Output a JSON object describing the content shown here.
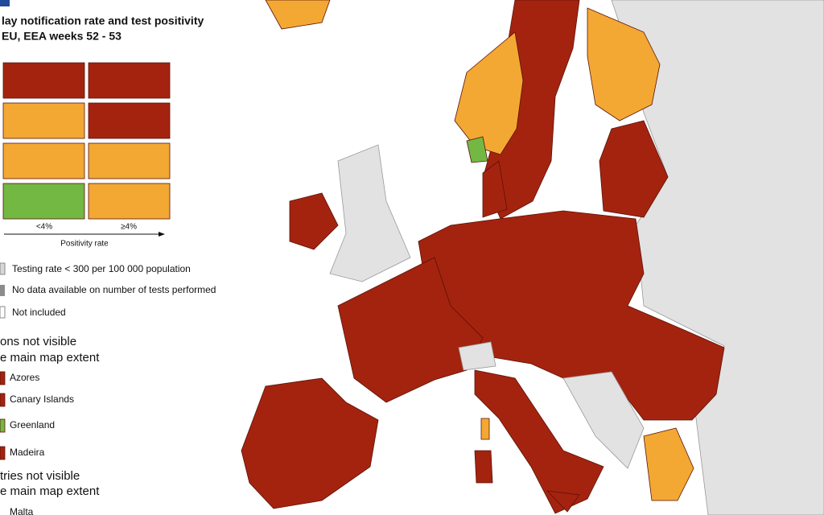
{
  "header": {
    "title_lines": [
      "lay notification rate and test positivity",
      "EU, EEA weeks 52 - 53"
    ]
  },
  "legend": {
    "x_labels": [
      "<4%",
      "≥4%"
    ],
    "axis_label": "Positivity rate",
    "other_items": [
      "Testing rate < 300 per 100 000 population",
      "No data available on number of tests performed",
      "Not included"
    ],
    "regions_heading": [
      "ons not visible",
      "e main map extent"
    ],
    "regions": [
      "Azores",
      "Canary Islands",
      "Greenland",
      "Madeira"
    ],
    "countries_heading": [
      "tries not visible",
      "e main map extent"
    ],
    "countries": [
      "Malta"
    ]
  }
}
